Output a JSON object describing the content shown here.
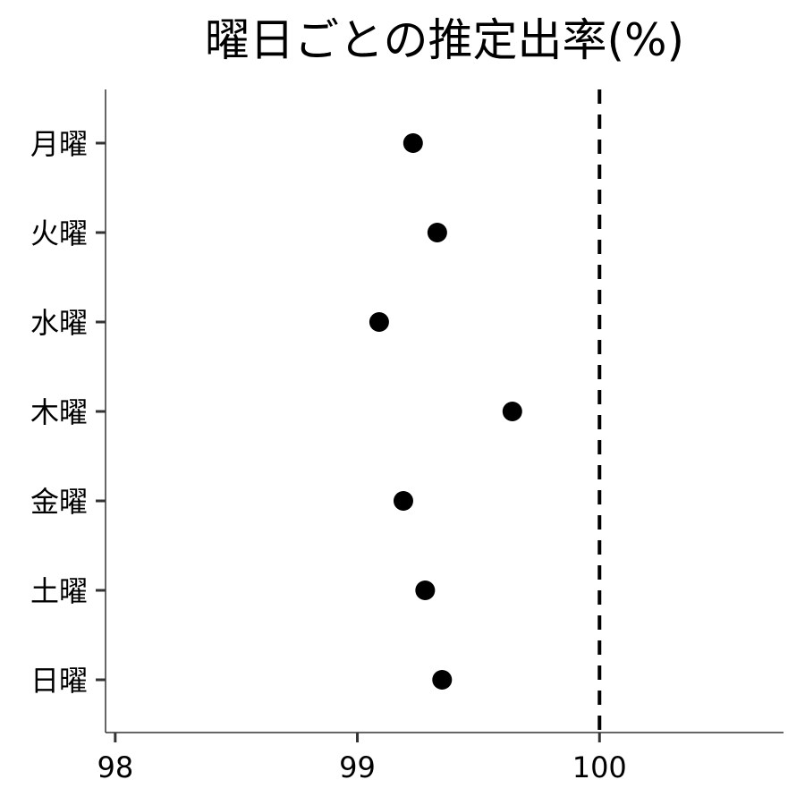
{
  "chart_data": {
    "type": "scatter",
    "title": "曜日ごとの推定出率(%)",
    "xlabel": "",
    "ylabel": "",
    "xlim": [
      97.96,
      100.76
    ],
    "xticks": [
      98,
      99,
      100
    ],
    "categories": [
      "月曜",
      "火曜",
      "水曜",
      "木曜",
      "金曜",
      "土曜",
      "日曜"
    ],
    "values": [
      99.23,
      99.33,
      99.09,
      99.64,
      99.19,
      99.28,
      99.35
    ],
    "reference_line": {
      "x": 100,
      "style": "dashed"
    },
    "grid": false,
    "legend": "none",
    "colors": {
      "point": "#000000",
      "axis": "#333333",
      "reference": "#000000"
    }
  }
}
